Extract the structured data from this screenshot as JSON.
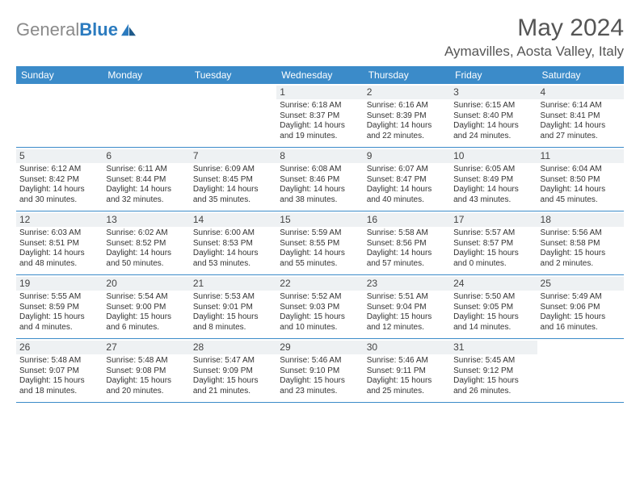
{
  "logo": {
    "gray": "General",
    "blue": "Blue"
  },
  "title": "May 2024",
  "location": "Aymavilles, Aosta Valley, Italy",
  "colors": {
    "header_bg": "#3b8bc9",
    "header_text": "#ffffff",
    "daynum_bg": "#eef1f3",
    "rule": "#3b8bc9",
    "text": "#333333",
    "title_text": "#555555",
    "logo_gray": "#8a8a8a",
    "logo_blue": "#2b7bbf"
  },
  "dow": [
    "Sunday",
    "Monday",
    "Tuesday",
    "Wednesday",
    "Thursday",
    "Friday",
    "Saturday"
  ],
  "weeks": [
    [
      {
        "n": "",
        "sr": "",
        "ss": "",
        "dl": ""
      },
      {
        "n": "",
        "sr": "",
        "ss": "",
        "dl": ""
      },
      {
        "n": "",
        "sr": "",
        "ss": "",
        "dl": ""
      },
      {
        "n": "1",
        "sr": "6:18 AM",
        "ss": "8:37 PM",
        "dl": "14 hours and 19 minutes."
      },
      {
        "n": "2",
        "sr": "6:16 AM",
        "ss": "8:39 PM",
        "dl": "14 hours and 22 minutes."
      },
      {
        "n": "3",
        "sr": "6:15 AM",
        "ss": "8:40 PM",
        "dl": "14 hours and 24 minutes."
      },
      {
        "n": "4",
        "sr": "6:14 AM",
        "ss": "8:41 PM",
        "dl": "14 hours and 27 minutes."
      }
    ],
    [
      {
        "n": "5",
        "sr": "6:12 AM",
        "ss": "8:42 PM",
        "dl": "14 hours and 30 minutes."
      },
      {
        "n": "6",
        "sr": "6:11 AM",
        "ss": "8:44 PM",
        "dl": "14 hours and 32 minutes."
      },
      {
        "n": "7",
        "sr": "6:09 AM",
        "ss": "8:45 PM",
        "dl": "14 hours and 35 minutes."
      },
      {
        "n": "8",
        "sr": "6:08 AM",
        "ss": "8:46 PM",
        "dl": "14 hours and 38 minutes."
      },
      {
        "n": "9",
        "sr": "6:07 AM",
        "ss": "8:47 PM",
        "dl": "14 hours and 40 minutes."
      },
      {
        "n": "10",
        "sr": "6:05 AM",
        "ss": "8:49 PM",
        "dl": "14 hours and 43 minutes."
      },
      {
        "n": "11",
        "sr": "6:04 AM",
        "ss": "8:50 PM",
        "dl": "14 hours and 45 minutes."
      }
    ],
    [
      {
        "n": "12",
        "sr": "6:03 AM",
        "ss": "8:51 PM",
        "dl": "14 hours and 48 minutes."
      },
      {
        "n": "13",
        "sr": "6:02 AM",
        "ss": "8:52 PM",
        "dl": "14 hours and 50 minutes."
      },
      {
        "n": "14",
        "sr": "6:00 AM",
        "ss": "8:53 PM",
        "dl": "14 hours and 53 minutes."
      },
      {
        "n": "15",
        "sr": "5:59 AM",
        "ss": "8:55 PM",
        "dl": "14 hours and 55 minutes."
      },
      {
        "n": "16",
        "sr": "5:58 AM",
        "ss": "8:56 PM",
        "dl": "14 hours and 57 minutes."
      },
      {
        "n": "17",
        "sr": "5:57 AM",
        "ss": "8:57 PM",
        "dl": "15 hours and 0 minutes."
      },
      {
        "n": "18",
        "sr": "5:56 AM",
        "ss": "8:58 PM",
        "dl": "15 hours and 2 minutes."
      }
    ],
    [
      {
        "n": "19",
        "sr": "5:55 AM",
        "ss": "8:59 PM",
        "dl": "15 hours and 4 minutes."
      },
      {
        "n": "20",
        "sr": "5:54 AM",
        "ss": "9:00 PM",
        "dl": "15 hours and 6 minutes."
      },
      {
        "n": "21",
        "sr": "5:53 AM",
        "ss": "9:01 PM",
        "dl": "15 hours and 8 minutes."
      },
      {
        "n": "22",
        "sr": "5:52 AM",
        "ss": "9:03 PM",
        "dl": "15 hours and 10 minutes."
      },
      {
        "n": "23",
        "sr": "5:51 AM",
        "ss": "9:04 PM",
        "dl": "15 hours and 12 minutes."
      },
      {
        "n": "24",
        "sr": "5:50 AM",
        "ss": "9:05 PM",
        "dl": "15 hours and 14 minutes."
      },
      {
        "n": "25",
        "sr": "5:49 AM",
        "ss": "9:06 PM",
        "dl": "15 hours and 16 minutes."
      }
    ],
    [
      {
        "n": "26",
        "sr": "5:48 AM",
        "ss": "9:07 PM",
        "dl": "15 hours and 18 minutes."
      },
      {
        "n": "27",
        "sr": "5:48 AM",
        "ss": "9:08 PM",
        "dl": "15 hours and 20 minutes."
      },
      {
        "n": "28",
        "sr": "5:47 AM",
        "ss": "9:09 PM",
        "dl": "15 hours and 21 minutes."
      },
      {
        "n": "29",
        "sr": "5:46 AM",
        "ss": "9:10 PM",
        "dl": "15 hours and 23 minutes."
      },
      {
        "n": "30",
        "sr": "5:46 AM",
        "ss": "9:11 PM",
        "dl": "15 hours and 25 minutes."
      },
      {
        "n": "31",
        "sr": "5:45 AM",
        "ss": "9:12 PM",
        "dl": "15 hours and 26 minutes."
      },
      {
        "n": "",
        "sr": "",
        "ss": "",
        "dl": ""
      }
    ]
  ],
  "labels": {
    "sunrise": "Sunrise: ",
    "sunset": "Sunset: ",
    "daylight": "Daylight: "
  }
}
